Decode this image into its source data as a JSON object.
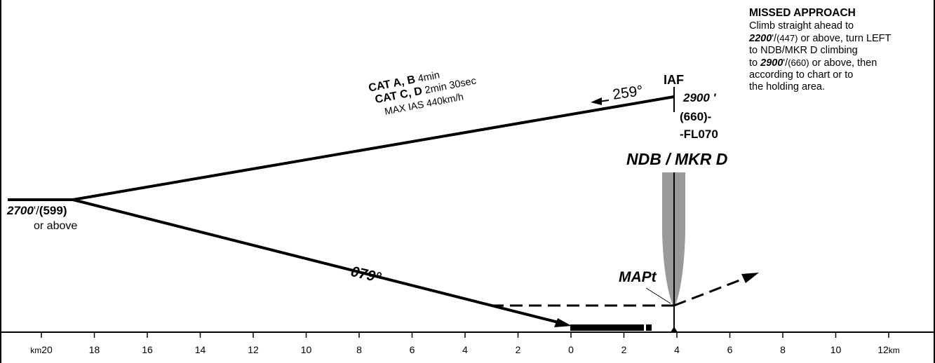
{
  "missed_approach": {
    "title": "MISSED APPROACH",
    "line1": "Climb straight ahead to",
    "line2_alt": "2200",
    "line2_unit": "'/",
    "line2_height": "(447)",
    "line2_rest": " or above, turn LEFT",
    "line3": "to NDB/MKR D climbing",
    "line4_pre": "to ",
    "line4_alt": "2900",
    "line4_unit": "'/",
    "line4_height": "(660)",
    "line4_rest": " or above, then",
    "line5": "according to chart or to",
    "line6": "the holding area."
  },
  "fixes": {
    "iaf": "IAF",
    "iaf_alt": "2900 '",
    "iaf_height": "(660)-",
    "iaf_fl": "-FL070",
    "ndb": "NDB / MKR  D",
    "mapt": "MAPt"
  },
  "procedure_turn": {
    "cat_ab": "CAT A, B",
    "cat_ab_time": " 4min",
    "cat_cd": "CAT C, D",
    "cat_cd_time": " 2min 30sec",
    "max_ias": "MAX IAS 440km/h",
    "outbound_course": "259°",
    "inbound_course": "079°"
  },
  "altitude_left": {
    "alt": "2700",
    "unit": "'/",
    "height": "(599)",
    "note": "or above"
  },
  "scale": {
    "unit_left": "km",
    "unit_right": "km",
    "ticks": [
      {
        "km": -20,
        "label": "20"
      },
      {
        "km": -18,
        "label": "18"
      },
      {
        "km": -16,
        "label": "16"
      },
      {
        "km": -14,
        "label": "14"
      },
      {
        "km": -12,
        "label": "12"
      },
      {
        "km": -10,
        "label": "10"
      },
      {
        "km": -8,
        "label": "8"
      },
      {
        "km": -6,
        "label": "6"
      },
      {
        "km": -4,
        "label": "4"
      },
      {
        "km": -2,
        "label": "2"
      },
      {
        "km": 0,
        "label": "0"
      },
      {
        "km": 2,
        "label": "2"
      },
      {
        "km": 4,
        "label": "4"
      },
      {
        "km": 6,
        "label": "6"
      },
      {
        "km": 8,
        "label": "8"
      },
      {
        "km": 10,
        "label": "10"
      },
      {
        "km": 12,
        "label": "12"
      }
    ]
  },
  "colors": {
    "line": "#000000",
    "beam": "#999999"
  }
}
